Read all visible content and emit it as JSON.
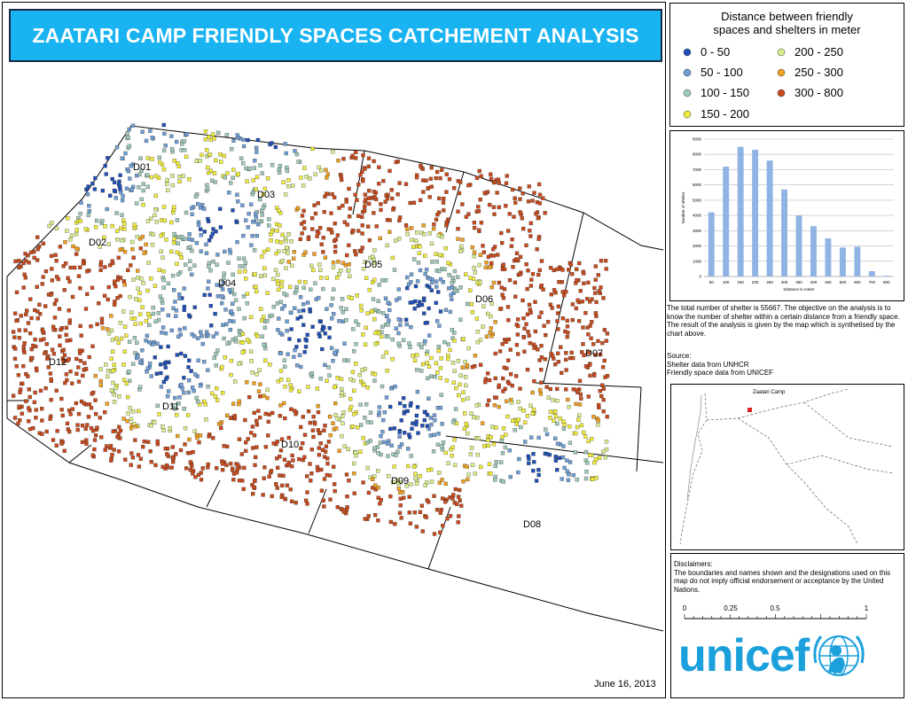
{
  "title": "ZAATARI CAMP FRIENDLY SPACES CATCHEMENT ANALYSIS",
  "date": "June 16, 2013",
  "districts": [
    "D01",
    "D02",
    "D03",
    "D04",
    "D05",
    "D06",
    "D07",
    "D08",
    "D09",
    "D10",
    "D11",
    "D12"
  ],
  "legend": {
    "title_line1": "Distance between friendly",
    "title_line2": "spaces and shelters in meter",
    "items": [
      {
        "label": "0 - 50",
        "color": "#1f4fb5"
      },
      {
        "label": "50 - 100",
        "color": "#6f9fd6"
      },
      {
        "label": "100 - 150",
        "color": "#9fc9b8"
      },
      {
        "label": "150 - 200",
        "color": "#f0ec3c"
      },
      {
        "label": "200 - 250",
        "color": "#d8ee8a"
      },
      {
        "label": "250 - 300",
        "color": "#f0a020"
      },
      {
        "label": "300 - 800",
        "color": "#c84a1c"
      }
    ]
  },
  "chart_data": {
    "type": "bar",
    "categories": [
      "50",
      "100",
      "150",
      "200",
      "250",
      "300",
      "350",
      "400",
      "450",
      "500",
      "600",
      "700",
      "800"
    ],
    "values": [
      4200,
      7200,
      8500,
      8300,
      7600,
      5700,
      4000,
      3300,
      2500,
      1900,
      1950,
      350,
      50
    ],
    "ylabel": "Number of shelter",
    "xlabel": "Distance in meter",
    "ylim": [
      0,
      9000
    ],
    "yticks": [
      "0",
      "1000",
      "2000",
      "3000",
      "4000",
      "5000",
      "6000",
      "7000",
      "8000",
      "9000"
    ],
    "bar_color": "#8fb4e3"
  },
  "description": "The total number of shelter is 55667. The objective on the analysis is to know the number  of shelter within a certain distance from a friendly space. The result of the analysis is  given by the map which is synthetised by the chart above.",
  "source": {
    "heading": "Source:",
    "line1": "Shelter data from UNHCR",
    "line2": "Friendly space data from UNICEF"
  },
  "inset": {
    "label": "Zaatari Camp",
    "marker_color": "#e02020"
  },
  "disclaimer": {
    "heading": "Disclaimers:",
    "text": "The boundaries and names shown and the designations used on this map do not imply official endorsement or acceptance by the United Nations."
  },
  "scale": {
    "ticks": [
      "0",
      "0.25",
      "0.5",
      "1"
    ]
  },
  "logo": {
    "word": "unicef",
    "color": "#1ca0dc"
  }
}
